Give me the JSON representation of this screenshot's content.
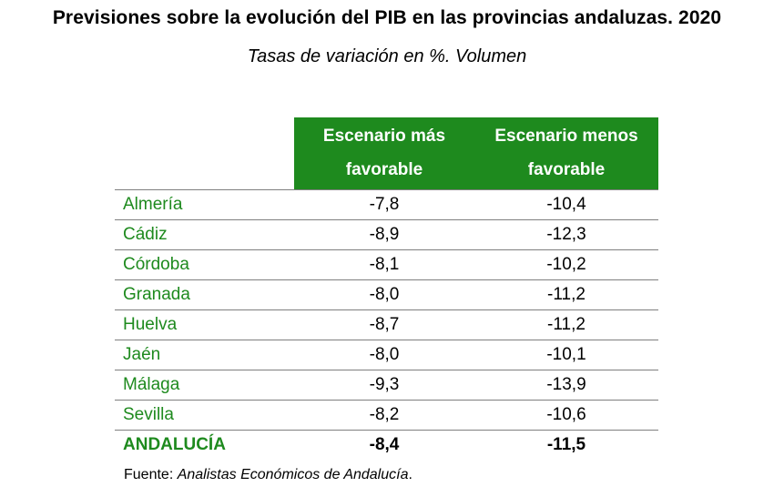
{
  "title": "Previsiones sobre la evolución del PIB en las provincias andaluzas. 2020",
  "subtitle": "Tasas de variación en %. Volumen",
  "columns": {
    "col1_line1": "Escenario más",
    "col1_line2": "favorable",
    "col2_line1": "Escenario menos",
    "col2_line2": "favorable"
  },
  "rows": [
    {
      "province": "Almería",
      "favorable": "-7,8",
      "unfavorable": "-10,4"
    },
    {
      "province": "Cádiz",
      "favorable": "-8,9",
      "unfavorable": "-12,3"
    },
    {
      "province": "Córdoba",
      "favorable": "-8,1",
      "unfavorable": "-10,2"
    },
    {
      "province": "Granada",
      "favorable": "-8,0",
      "unfavorable": "-11,2"
    },
    {
      "province": "Huelva",
      "favorable": "-8,7",
      "unfavorable": "-11,2"
    },
    {
      "province": "Jaén",
      "favorable": "-8,0",
      "unfavorable": "-10,1"
    },
    {
      "province": "Málaga",
      "favorable": "-9,3",
      "unfavorable": "-13,9"
    },
    {
      "province": "Sevilla",
      "favorable": "-8,2",
      "unfavorable": "-10,6"
    }
  ],
  "total": {
    "province": "ANDALUCÍA",
    "favorable": "-8,4",
    "unfavorable": "-11,5"
  },
  "source": {
    "label": "Fuente: ",
    "text": "Analistas Económicos de Andalucía",
    "suffix": "."
  },
  "colors": {
    "accent_green": "#1e8a1e",
    "rule_gray": "#7f7f7f"
  }
}
